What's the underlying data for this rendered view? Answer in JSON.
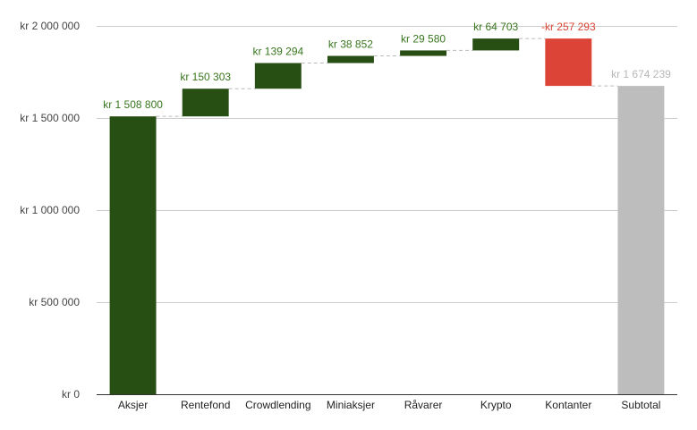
{
  "chart_data": {
    "type": "waterfall",
    "categories": [
      "Aksjer",
      "Rentefond",
      "Crowdlending",
      "Miniaksjer",
      "Råvarer",
      "Krypto",
      "Kontanter",
      "Subtotal"
    ],
    "values": [
      1508800,
      150303,
      139294,
      38852,
      29580,
      64703,
      -257293,
      1674239
    ],
    "kinds": [
      "increase",
      "increase",
      "increase",
      "increase",
      "increase",
      "increase",
      "decrease",
      "total"
    ],
    "data_labels": [
      "kr 1 508 800",
      "kr  150 303",
      "kr  139 294",
      "kr  38 852",
      "kr  29 580",
      "kr  64 703",
      "-kr  257 293",
      "kr 1 674 239"
    ],
    "y_ticks": [
      0,
      500000,
      1000000,
      1500000,
      2000000
    ],
    "y_tick_labels": [
      "kr   0",
      "kr  500 000",
      "kr 1 000 000",
      "kr 1 500 000",
      "kr 2 000 000"
    ],
    "ylim": [
      0,
      2000000
    ],
    "grid": true,
    "title": "",
    "xlabel": "",
    "ylabel": "",
    "colors": {
      "increase": "#274e13",
      "decrease": "#db4437",
      "total": "#bdbdbd",
      "increase_label": "#38761d",
      "decrease_label": "#db4437",
      "total_label": "#b7b7b7"
    }
  }
}
